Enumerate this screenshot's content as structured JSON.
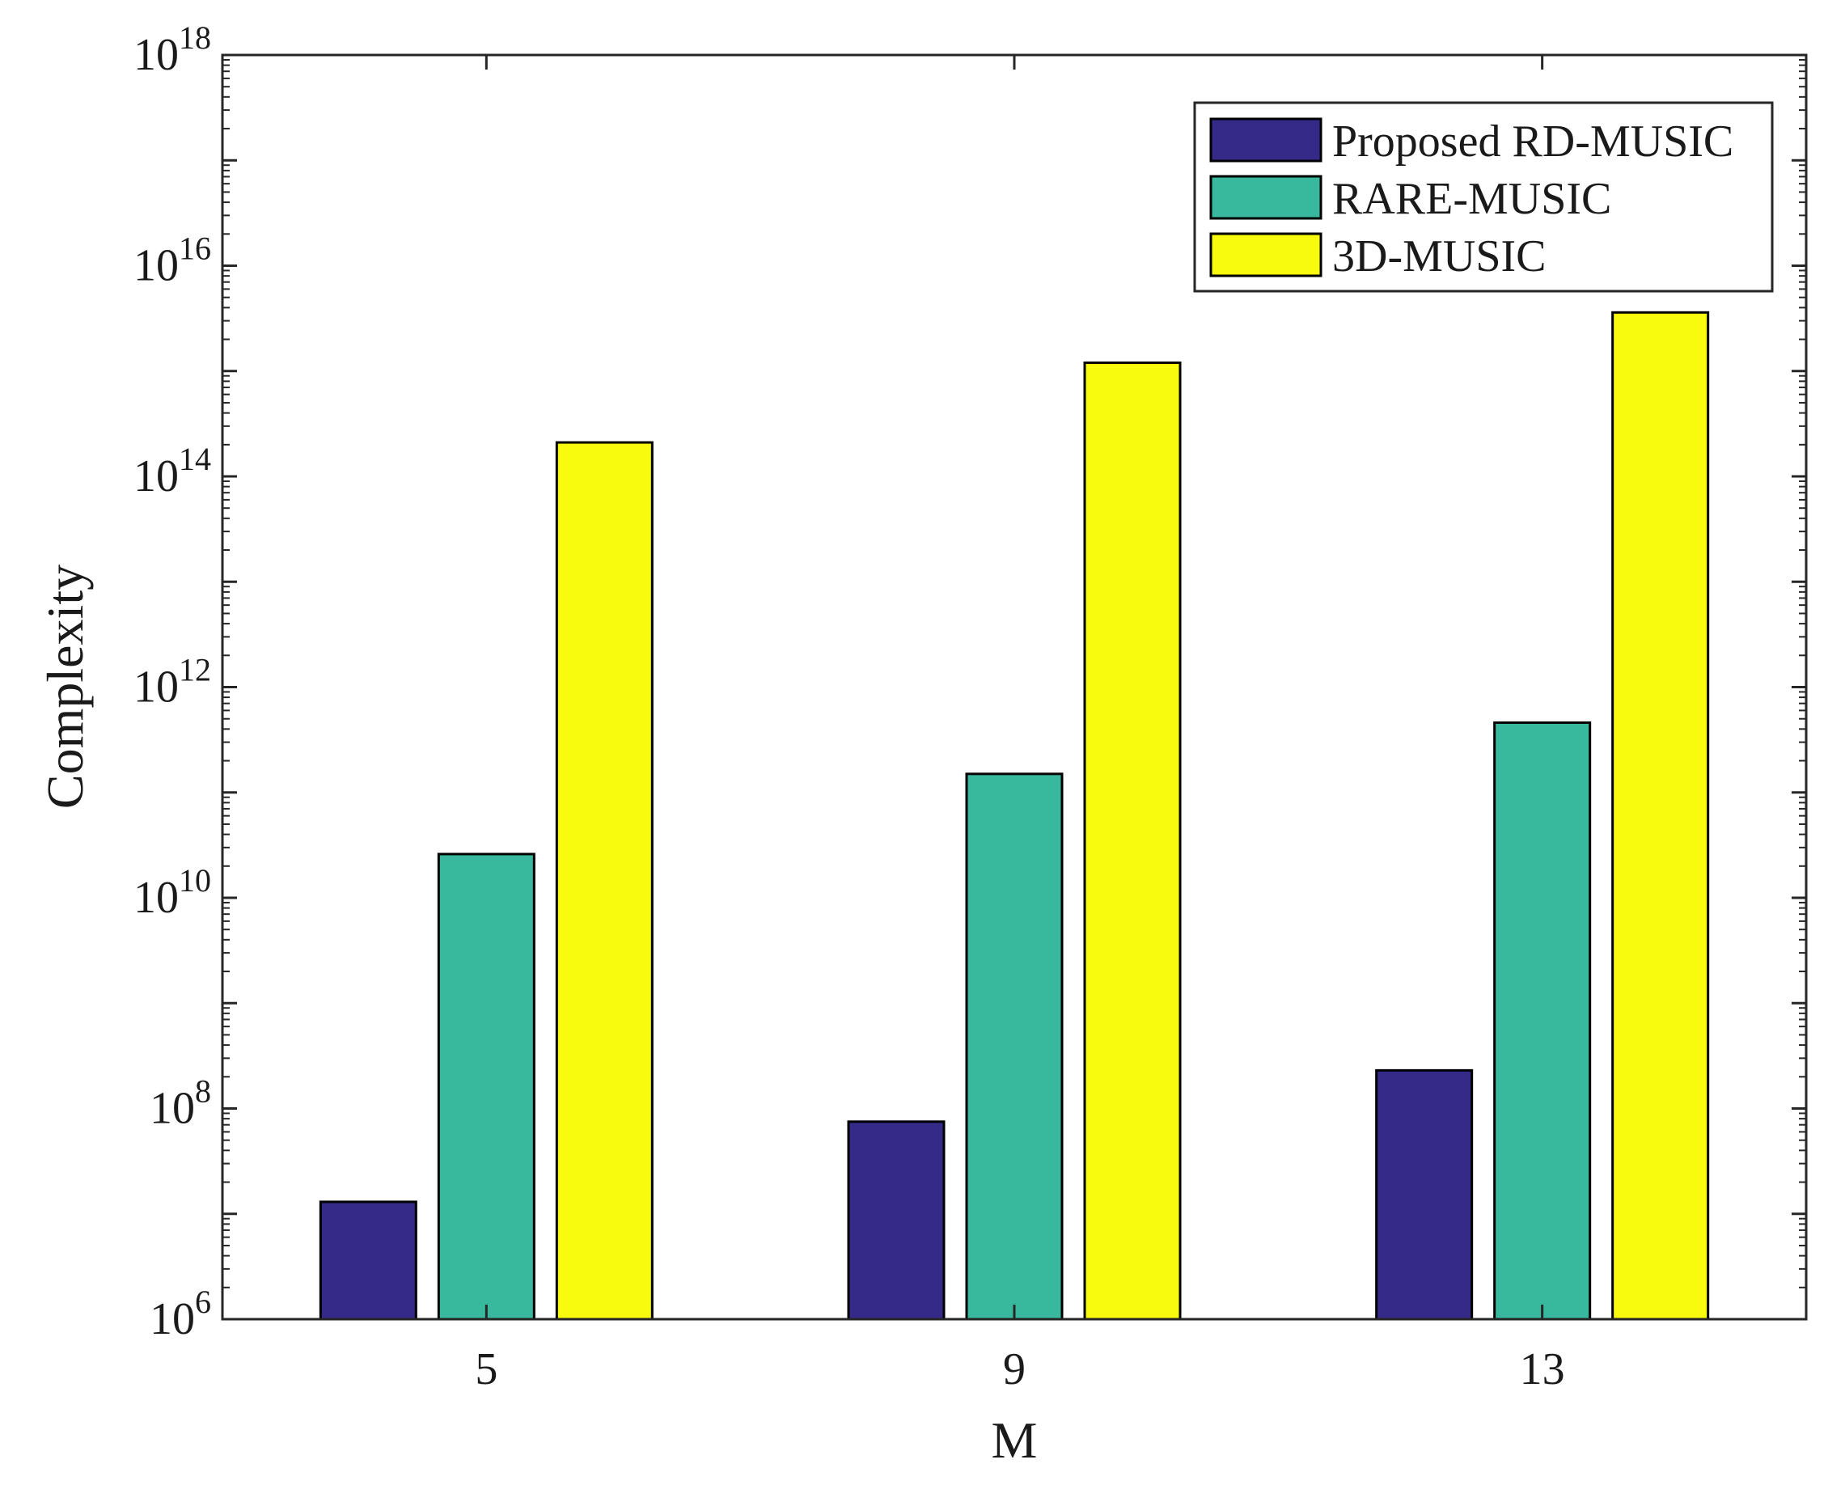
{
  "chart_data": {
    "type": "bar",
    "title": "",
    "xlabel": "M",
    "ylabel": "Complexity",
    "yscale": "log",
    "ylim": [
      1000000.0,
      1e+18
    ],
    "ytick_base": "10",
    "ytick_exponents": [
      "6",
      "8",
      "10",
      "12",
      "14",
      "16",
      "18"
    ],
    "categories": [
      "5",
      "9",
      "13"
    ],
    "series": [
      {
        "name": "Proposed RD-MUSIC",
        "color": "#352a87",
        "values": [
          13000000.0,
          75000000.0,
          230000000.0
        ]
      },
      {
        "name": "RARE-MUSIC",
        "color": "#38b99e",
        "values": [
          26000000000.0,
          150000000000.0,
          460000000000.0
        ]
      },
      {
        "name": "3D-MUSIC",
        "color": "#f9fb0e",
        "values": [
          210000000000000.0,
          1200000000000000.0,
          3600000000000000.0
        ]
      }
    ],
    "legend_position": "top-right",
    "grid": false
  }
}
